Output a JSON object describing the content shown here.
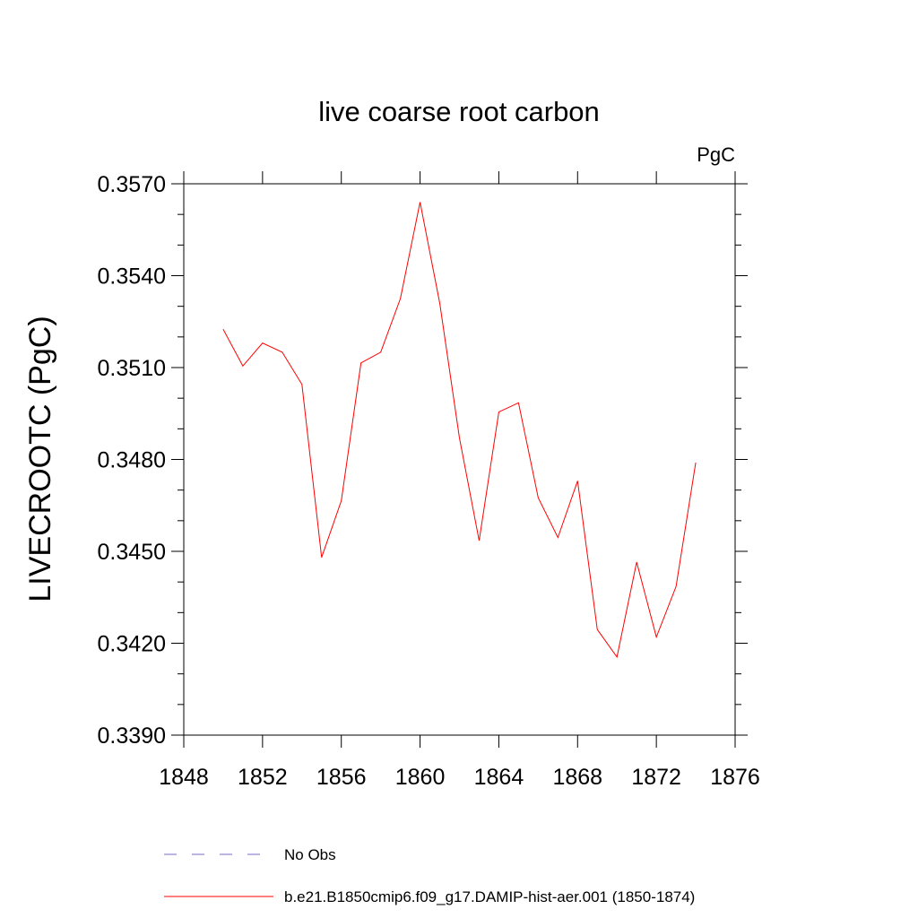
{
  "chart_data": {
    "type": "line",
    "title": "live coarse root carbon",
    "units_label": "PgC",
    "ylabel": "LIVECROOTC  (PgC)",
    "xlabel": "",
    "xlim": [
      1848,
      1876
    ],
    "ylim": [
      0.339,
      0.357
    ],
    "x_ticks": [
      1848,
      1852,
      1856,
      1860,
      1864,
      1868,
      1872,
      1876
    ],
    "x_tick_labels": [
      "1848",
      "1852",
      "1856",
      "1860",
      "1864",
      "1868",
      "1872",
      "1876"
    ],
    "y_ticks": [
      0.339,
      0.342,
      0.345,
      0.348,
      0.351,
      0.354,
      0.357
    ],
    "y_tick_labels": [
      "0.3390",
      "0.3420",
      "0.3450",
      "0.3480",
      "0.3510",
      "0.3540",
      "0.3570"
    ],
    "grid": false,
    "legend_position": "bottom",
    "legend": [
      {
        "label": "No Obs",
        "color": "#7b68c8",
        "style": "dashed"
      },
      {
        "label": "b.e21.B1850cmip6.f09_g17.DAMIP-hist-aer.001 (1850-1874)",
        "color": "#ff0000",
        "style": "solid"
      }
    ],
    "series": [
      {
        "color": "#ff0000",
        "x": [
          1850,
          1851,
          1852,
          1853,
          1854,
          1855,
          1856,
          1857,
          1858,
          1859,
          1860,
          1861,
          1862,
          1863,
          1864,
          1865,
          1866,
          1867,
          1868,
          1869,
          1870,
          1871,
          1872,
          1873,
          1874
        ],
        "values": [
          0.35225,
          0.35105,
          0.3518,
          0.3515,
          0.35045,
          0.3448,
          0.34665,
          0.35115,
          0.3515,
          0.35325,
          0.3564,
          0.3531,
          0.3487,
          0.34535,
          0.34955,
          0.34985,
          0.34675,
          0.34545,
          0.3473,
          0.34245,
          0.34155,
          0.34465,
          0.3422,
          0.34385,
          0.3479
        ]
      }
    ]
  }
}
